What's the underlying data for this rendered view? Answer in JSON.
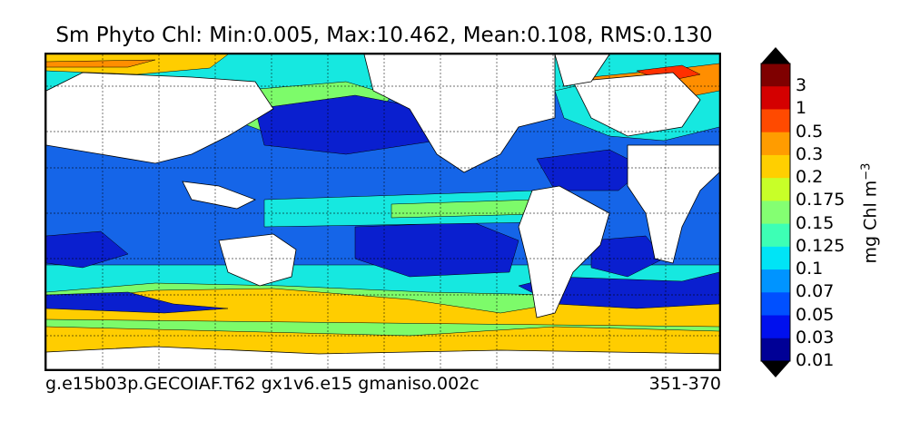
{
  "title": "Sm Phyto Chl: Min:0.005, Max:10.462, Mean:0.108, RMS:0.130",
  "footer": {
    "run_id": "g.e15b03p.GECOIAF.T62 gx1v6.e15 gmaniso.002c",
    "years": "351-370"
  },
  "colorbar": {
    "unit_label": "mg Chl m",
    "unit_exponent": "−3",
    "tick_labels": [
      "3",
      "1",
      "0.5",
      "0.3",
      "0.2",
      "0.175",
      "0.15",
      "0.125",
      "0.1",
      "0.07",
      "0.05",
      "0.03",
      "0.01"
    ],
    "colors": [
      "#000000",
      "#7f0000",
      "#d40000",
      "#ff4a00",
      "#ff9c00",
      "#ffcf00",
      "#c8ff28",
      "#84ff72",
      "#3dffb5",
      "#00e4f6",
      "#0094ff",
      "#0050ff",
      "#0010ee",
      "#000096",
      "#000000"
    ]
  },
  "map": {
    "projection": "cylindrical",
    "gridlines": "dashed",
    "land_color": "#ffffff",
    "ocean_background": "#1565e8",
    "colors": {
      "oligotrophic_core": "#0a1fcf",
      "deep_blue": "#0010ee",
      "blue": "#1565e8",
      "cyan": "#16e8e0",
      "green": "#7dfb6a",
      "yellow": "#ffcd00",
      "orange": "#ff8e00",
      "red": "#ff3000",
      "land": "#ffffff"
    }
  }
}
